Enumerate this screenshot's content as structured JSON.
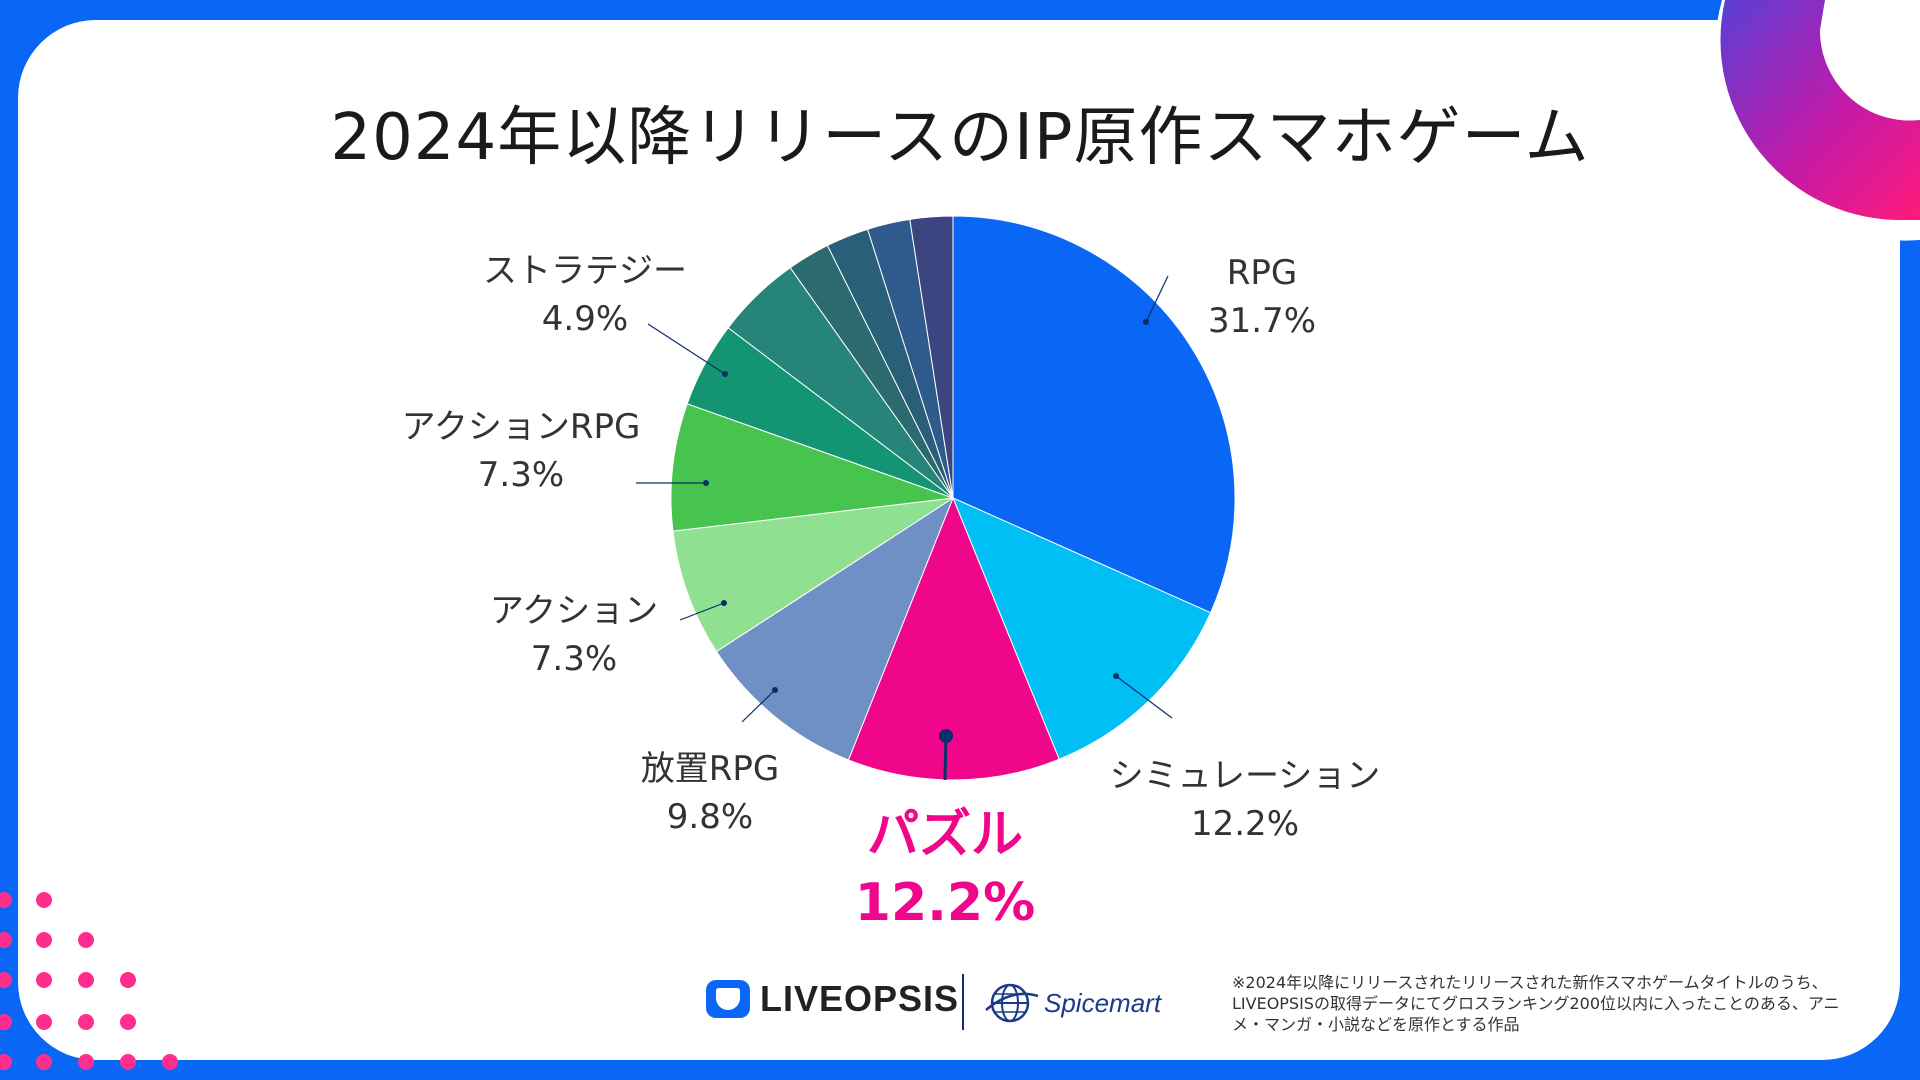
{
  "title": "2024年以降リリースのIP原作スマホゲーム",
  "chart_data": {
    "type": "pie",
    "title": "2024年以降リリースのIP原作スマホゲーム",
    "slices": [
      {
        "label": "RPG",
        "value": 31.7,
        "color": "#0a66f5",
        "pct_text": "31.7%"
      },
      {
        "label": "シミュレーション",
        "value": 12.2,
        "color": "#00bff5",
        "pct_text": "12.2%"
      },
      {
        "label": "パズル",
        "value": 12.2,
        "color": "#f0068a",
        "pct_text": "12.2%",
        "highlight": true
      },
      {
        "label": "放置RPG",
        "value": 9.8,
        "color": "#6f90c4",
        "pct_text": "9.8%"
      },
      {
        "label": "アクション",
        "value": 7.3,
        "color": "#8fe090",
        "pct_text": "7.3%"
      },
      {
        "label": "アクションRPG",
        "value": 7.3,
        "color": "#46c44e",
        "pct_text": "7.3%"
      },
      {
        "label": "ストラテジー",
        "value": 4.9,
        "color": "#139573",
        "pct_text": "4.9%"
      },
      {
        "label": "",
        "value": 4.9,
        "color": "#268479"
      },
      {
        "label": "",
        "value": 2.45,
        "color": "#2b6a6e"
      },
      {
        "label": "",
        "value": 2.45,
        "color": "#2a5f79"
      },
      {
        "label": "",
        "value": 2.45,
        "color": "#2f5a8c"
      },
      {
        "label": "",
        "value": 2.45,
        "color": "#3b4580"
      }
    ],
    "start_angle": "12 o'clock",
    "direction": "clockwise"
  },
  "footer": {
    "note": "※2024年以降にリリースされたリリースされた新作スマホゲームタイトルのうち、LIVEOPSISの取得データにてグロスランキング200位以内に入ったことのある、アニメ・マンガ・小説などを原作とする作品",
    "logo1": "LIVEOPSIS",
    "logo2": "Spicemart"
  },
  "colors": {
    "frame": "#0a66f5",
    "accent": "#f0068a"
  }
}
